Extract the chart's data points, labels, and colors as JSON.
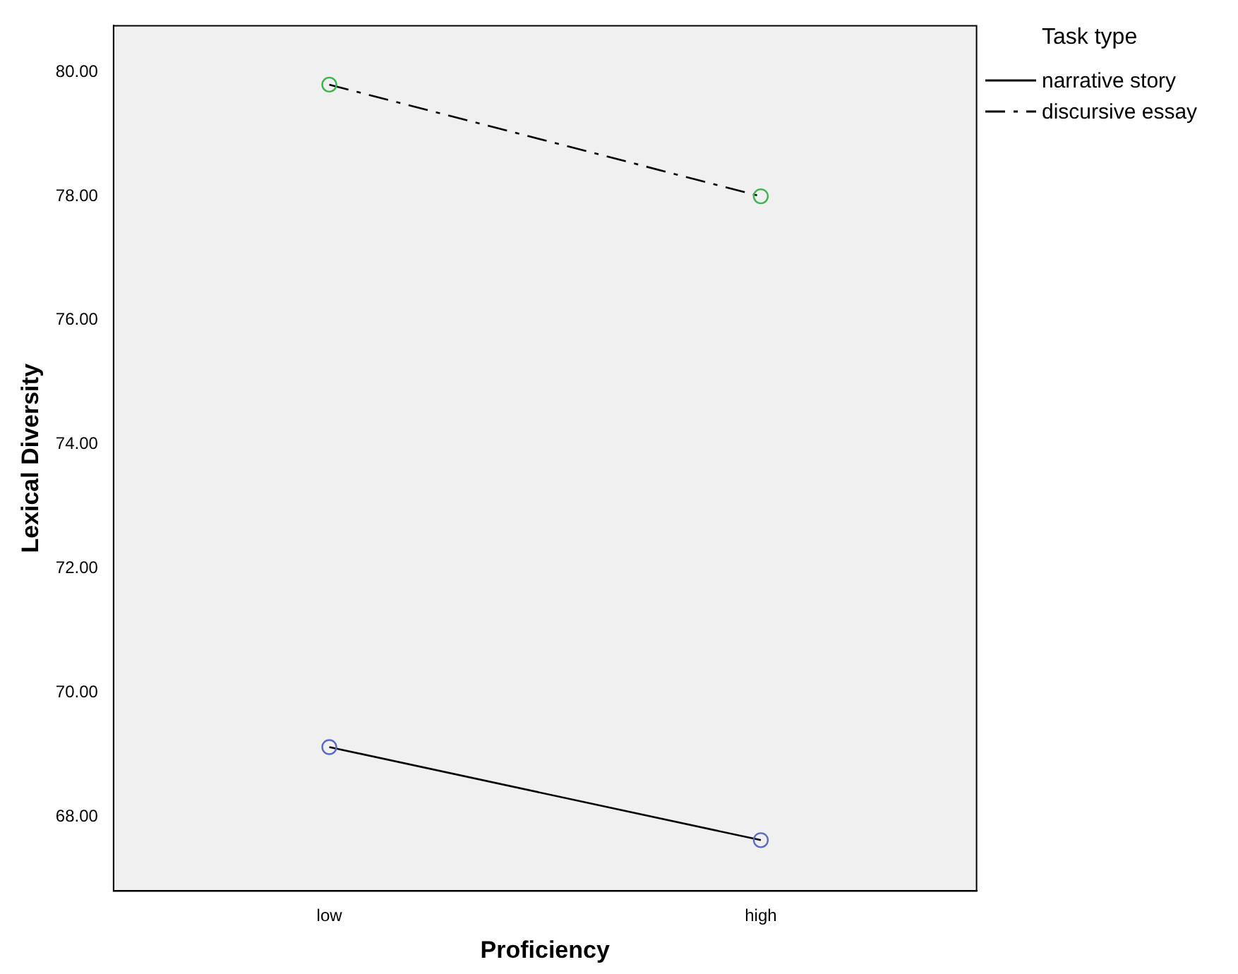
{
  "chart_data": {
    "type": "line",
    "xlabel": "Proficiency",
    "ylabel": "Lexical Diversity",
    "legend_title": "Task type",
    "legend": "top right",
    "grid": false,
    "marker": "circle",
    "categories": [
      "low",
      "high"
    ],
    "ylim": [
      66.8,
      80.75
    ],
    "yticks": [
      {
        "value": 68,
        "label": "68.00"
      },
      {
        "value": 70,
        "label": "70.00"
      },
      {
        "value": 72,
        "label": "72.00"
      },
      {
        "value": 74,
        "label": "74.00"
      },
      {
        "value": 76,
        "label": "76.00"
      },
      {
        "value": 78,
        "label": "78.00"
      },
      {
        "value": 80,
        "label": "80.00"
      }
    ],
    "series": [
      {
        "name": "narrative story",
        "color": "#000000",
        "colors": [
          "#5b6cc0",
          "#5b6cc0"
        ],
        "line_style": "solid",
        "values": [
          69.12,
          67.62
        ]
      },
      {
        "name": "discursive essay",
        "color": "#000000",
        "colors": [
          "#3fb34f",
          "#3fb34f"
        ],
        "line_style": "dashed",
        "values": [
          79.8,
          78.0
        ]
      }
    ]
  }
}
